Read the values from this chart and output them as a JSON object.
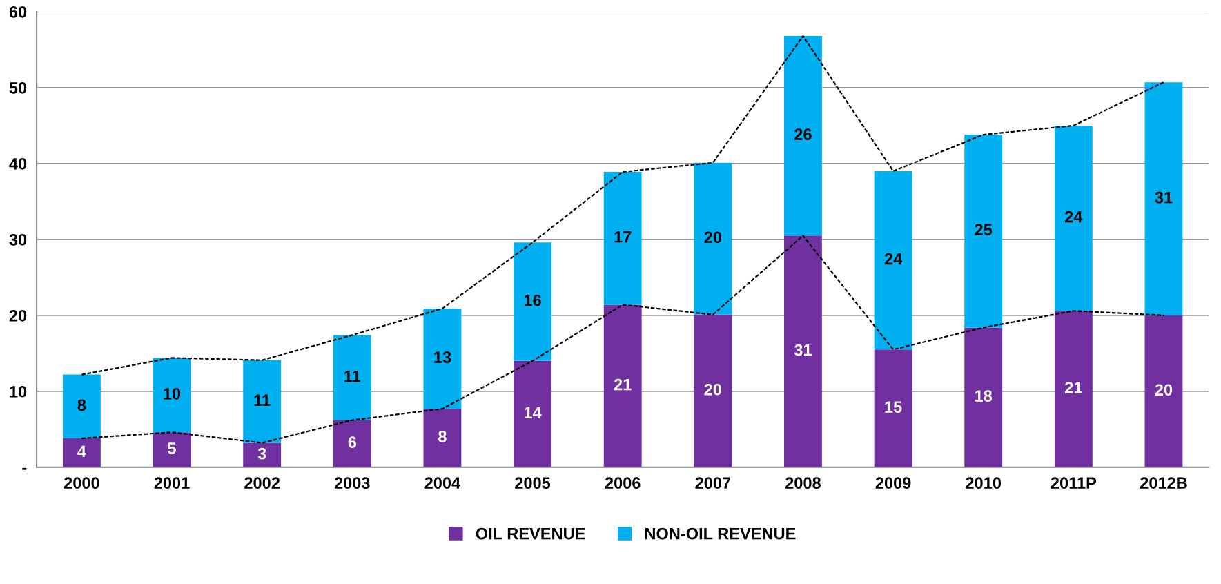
{
  "chart_data": {
    "type": "bar",
    "stacked": true,
    "categories": [
      "2000",
      "2001",
      "2002",
      "2003",
      "2004",
      "2005",
      "2006",
      "2007",
      "2008",
      "2009",
      "2010",
      "2011P",
      "2012B"
    ],
    "series": [
      {
        "name": "OIL REVENUE",
        "color": "#7030a0",
        "values": [
          3.8,
          4.6,
          3.2,
          6.2,
          7.7,
          14.0,
          21.4,
          20.1,
          30.5,
          15.5,
          18.4,
          20.6,
          20.0
        ],
        "value_labels": [
          "4",
          "5",
          "3",
          "6",
          "8",
          "14",
          "21",
          "20",
          "31",
          "15",
          "18",
          "21",
          "20"
        ]
      },
      {
        "name": "NON-OIL REVENUE",
        "color": "#00b0f0",
        "values": [
          8.4,
          9.8,
          10.9,
          11.2,
          13.2,
          15.6,
          17.5,
          20.0,
          26.3,
          23.5,
          25.4,
          24.4,
          30.7
        ],
        "value_labels": [
          "8",
          "10",
          "11",
          "11",
          "13",
          "16",
          "17",
          "20",
          "26",
          "24",
          "25",
          "24",
          "31"
        ]
      },
      {
        "type": "line",
        "color": "#000000",
        "line_style": "dashed",
        "values": [
          3.8,
          4.6,
          3.2,
          6.2,
          7.7,
          14.0,
          21.4,
          20.1,
          30.5,
          15.5,
          18.4,
          20.6,
          20.0
        ]
      },
      {
        "type": "line",
        "color": "#000000",
        "line_style": "dashed",
        "values": [
          12.2,
          14.4,
          14.1,
          17.4,
          20.9,
          29.6,
          38.9,
          40.1,
          56.8,
          39.0,
          43.8,
          45.0,
          50.7
        ]
      }
    ],
    "ylim": [
      0,
      60
    ],
    "yticks": [
      {
        "value": 0,
        "label": "-"
      },
      10,
      20,
      30,
      40,
      50,
      60
    ],
    "grid": "y",
    "legend": "bottom"
  }
}
